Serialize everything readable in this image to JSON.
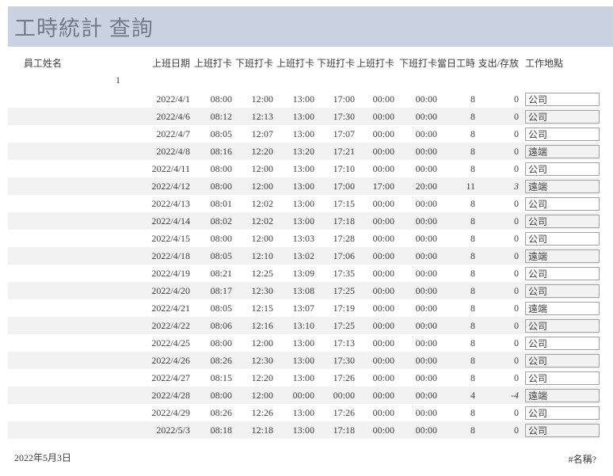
{
  "title": "工時統計 查詢",
  "table": {
    "columns": [
      "員工姓名",
      "上班日期",
      "上班打卡",
      "下班打卡",
      "上班打卡",
      "下班打卡",
      "上班打卡",
      "下班打卡",
      "當日工時",
      "支出/存放",
      "工作地點"
    ],
    "group_id": "1",
    "rows": [
      {
        "date": "2022/4/1",
        "t": [
          "08:00",
          "12:00",
          "13:00",
          "17:00",
          "00:00",
          "00:00"
        ],
        "hours": "8",
        "exp": "0",
        "loc": "公司",
        "em": false
      },
      {
        "date": "2022/4/6",
        "t": [
          "08:12",
          "12:13",
          "13:00",
          "17:30",
          "00:00",
          "00:00"
        ],
        "hours": "8",
        "exp": "0",
        "loc": "公司",
        "em": false
      },
      {
        "date": "2022/4/7",
        "t": [
          "08:05",
          "12:07",
          "13:00",
          "17:07",
          "00:00",
          "00:00"
        ],
        "hours": "8",
        "exp": "0",
        "loc": "公司",
        "em": false
      },
      {
        "date": "2022/4/8",
        "t": [
          "08:16",
          "12:20",
          "13:20",
          "17:21",
          "00:00",
          "00:00"
        ],
        "hours": "8",
        "exp": "0",
        "loc": "遠端",
        "em": false
      },
      {
        "date": "2022/4/11",
        "t": [
          "08:00",
          "12:00",
          "13:00",
          "17:10",
          "00:00",
          "00:00"
        ],
        "hours": "8",
        "exp": "0",
        "loc": "公司",
        "em": false
      },
      {
        "date": "2022/4/12",
        "t": [
          "08:00",
          "12:00",
          "13:00",
          "17:00",
          "17:00",
          "20:00"
        ],
        "hours": "11",
        "exp": "3",
        "loc": "遠端",
        "em": true
      },
      {
        "date": "2022/4/13",
        "t": [
          "08:01",
          "12:02",
          "13:00",
          "17:15",
          "00:00",
          "00:00"
        ],
        "hours": "8",
        "exp": "0",
        "loc": "公司",
        "em": false
      },
      {
        "date": "2022/4/14",
        "t": [
          "08:02",
          "12:02",
          "13:00",
          "17:18",
          "00:00",
          "00:00"
        ],
        "hours": "8",
        "exp": "0",
        "loc": "公司",
        "em": false
      },
      {
        "date": "2022/4/15",
        "t": [
          "08:00",
          "12:00",
          "13:03",
          "17:28",
          "00:00",
          "00:00"
        ],
        "hours": "8",
        "exp": "0",
        "loc": "公司",
        "em": false
      },
      {
        "date": "2022/4/18",
        "t": [
          "08:05",
          "12:10",
          "13:02",
          "17:06",
          "00:00",
          "00:00"
        ],
        "hours": "8",
        "exp": "0",
        "loc": "遠端",
        "em": false
      },
      {
        "date": "2022/4/19",
        "t": [
          "08:21",
          "12:25",
          "13:09",
          "17:35",
          "00:00",
          "00:00"
        ],
        "hours": "8",
        "exp": "0",
        "loc": "公司",
        "em": false
      },
      {
        "date": "2022/4/20",
        "t": [
          "08:17",
          "12:30",
          "13:08",
          "17:25",
          "00:00",
          "00:00"
        ],
        "hours": "8",
        "exp": "0",
        "loc": "公司",
        "em": false
      },
      {
        "date": "2022/4/21",
        "t": [
          "08:05",
          "12:15",
          "13:07",
          "17:19",
          "00:00",
          "00:00"
        ],
        "hours": "8",
        "exp": "0",
        "loc": "遠端",
        "em": false
      },
      {
        "date": "2022/4/22",
        "t": [
          "08:06",
          "12:16",
          "13:10",
          "17:25",
          "00:00",
          "00:00"
        ],
        "hours": "8",
        "exp": "0",
        "loc": "公司",
        "em": false
      },
      {
        "date": "2022/4/25",
        "t": [
          "08:00",
          "12:00",
          "13:00",
          "17:13",
          "00:00",
          "00:00"
        ],
        "hours": "8",
        "exp": "0",
        "loc": "公司",
        "em": false
      },
      {
        "date": "2022/4/26",
        "t": [
          "08:26",
          "12:30",
          "13:00",
          "17:30",
          "00:00",
          "00:00"
        ],
        "hours": "8",
        "exp": "0",
        "loc": "公司",
        "em": false
      },
      {
        "date": "2022/4/27",
        "t": [
          "08:15",
          "12:20",
          "13:00",
          "17:26",
          "00:00",
          "00:00"
        ],
        "hours": "8",
        "exp": "0",
        "loc": "公司",
        "em": false
      },
      {
        "date": "2022/4/28",
        "t": [
          "08:00",
          "12:00",
          "00:00",
          "00:00",
          "00:00",
          "00:00"
        ],
        "hours": "4",
        "exp": "-4",
        "loc": "遠端",
        "em": true
      },
      {
        "date": "2022/4/29",
        "t": [
          "08:26",
          "12:26",
          "13:00",
          "17:26",
          "00:00",
          "00:00"
        ],
        "hours": "8",
        "exp": "0",
        "loc": "公司",
        "em": false
      },
      {
        "date": "2022/5/3",
        "t": [
          "08:18",
          "12:18",
          "13:00",
          "17:18",
          "00:00",
          "00:00"
        ],
        "hours": "8",
        "exp": "0",
        "loc": "公司",
        "em": false
      }
    ]
  },
  "footer": {
    "date": "2022年5月3日",
    "error": "#名稱?"
  },
  "colors": {
    "title_band": "#ccd3e0",
    "title_text": "#727b8b",
    "row_stripe": "#f2f2f2",
    "body_text": "#404040",
    "input_border": "#a0a0a0"
  }
}
